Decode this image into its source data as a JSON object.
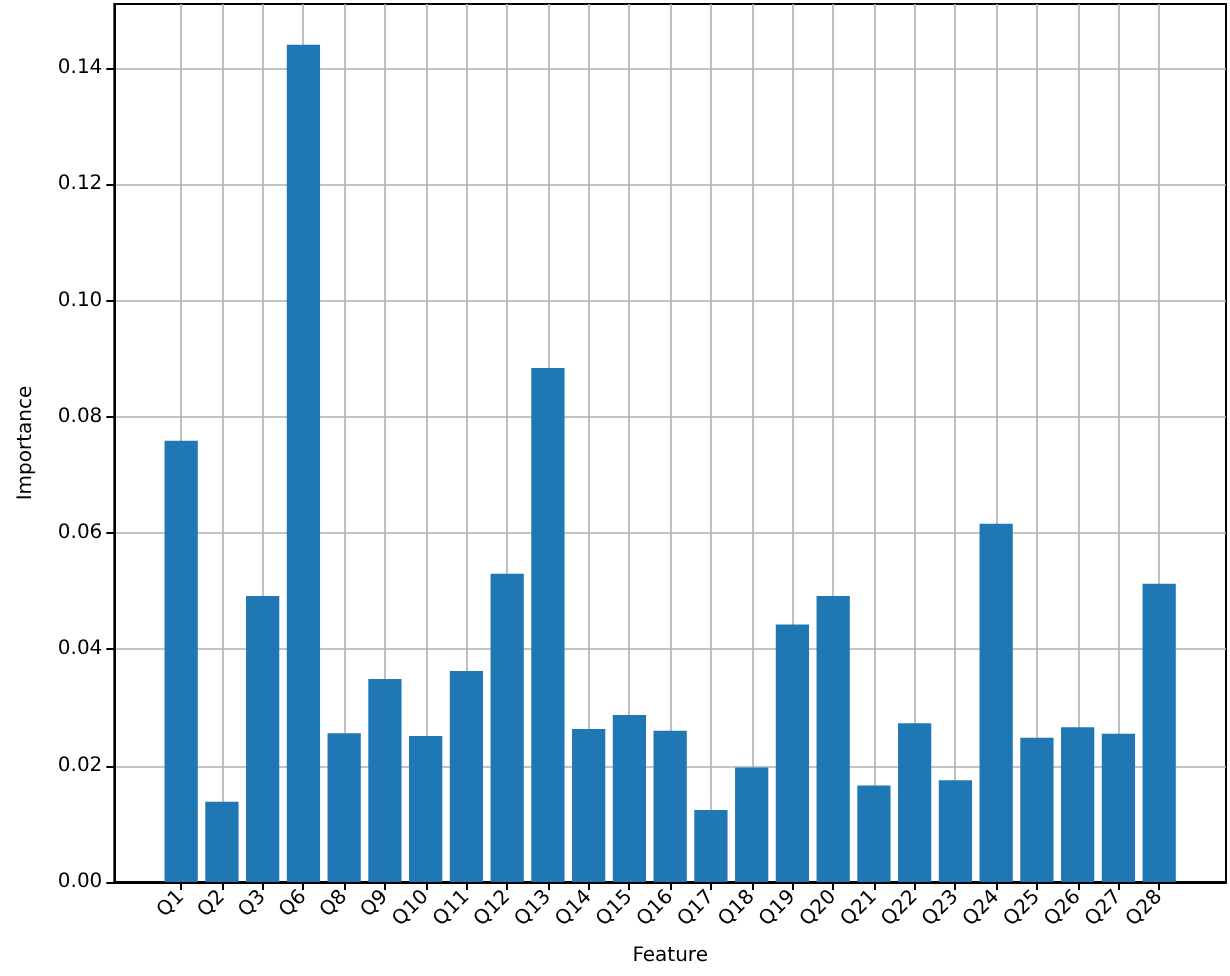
{
  "chart_data": {
    "type": "bar",
    "xlabel": "Feature",
    "ylabel": "Importance",
    "categories": [
      "Q1",
      "Q2",
      "Q3",
      "Q6",
      "Q8",
      "Q9",
      "Q10",
      "Q11",
      "Q12",
      "Q13",
      "Q14",
      "Q15",
      "Q16",
      "Q17",
      "Q18",
      "Q19",
      "Q20",
      "Q21",
      "Q22",
      "Q23",
      "Q24",
      "Q25",
      "Q26",
      "Q27",
      "Q28"
    ],
    "values": [
      0.0759,
      0.0138,
      0.0492,
      0.144,
      0.0256,
      0.0349,
      0.0251,
      0.0363,
      0.053,
      0.0884,
      0.0263,
      0.0287,
      0.026,
      0.0124,
      0.0197,
      0.0443,
      0.0492,
      0.0166,
      0.0273,
      0.0175,
      0.0616,
      0.0248,
      0.0266,
      0.0255,
      0.0513
    ],
    "color": "#1f77b4",
    "ylim": [
      0,
      0.151
    ],
    "yticks": [
      {
        "value": 0,
        "label": "0.00"
      },
      0.02,
      0.04,
      0.06,
      0.08,
      {
        "value": 0.1,
        "label": "0.10"
      },
      0.12,
      0.14
    ],
    "grid": true
  }
}
